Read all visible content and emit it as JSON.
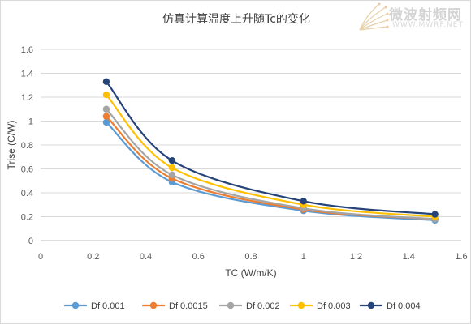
{
  "chart_data": {
    "type": "scatter",
    "title": "仿真计算温度上升随Tc的变化",
    "xlabel": "TC (W/m/K)",
    "ylabel": "Trise (C/W)",
    "xlim": [
      0,
      1.6
    ],
    "ylim": [
      0,
      1.6
    ],
    "xticks": [
      "0",
      "0.2",
      "0.4",
      "0.6",
      "0.8",
      "1",
      "1.2",
      "1.4",
      "1.6"
    ],
    "yticks": [
      "0",
      "0.2",
      "0.4",
      "0.6",
      "0.8",
      "1",
      "1.2",
      "1.4",
      "1.6"
    ],
    "grid": "horizontal",
    "legend_position": "bottom",
    "x": [
      0.25,
      0.5,
      1.0,
      1.5
    ],
    "series": [
      {
        "name": "Df 0.001",
        "color": "#5b9bd5",
        "values": [
          0.99,
          0.49,
          0.25,
          0.17
        ]
      },
      {
        "name": "Df 0.0015",
        "color": "#ed7d31",
        "values": [
          1.04,
          0.52,
          0.26,
          0.18
        ]
      },
      {
        "name": "Df 0.002",
        "color": "#a5a5a5",
        "values": [
          1.1,
          0.55,
          0.27,
          0.18
        ]
      },
      {
        "name": "Df 0.003",
        "color": "#ffc000",
        "values": [
          1.22,
          0.61,
          0.3,
          0.2
        ]
      },
      {
        "name": "Df 0.004",
        "color": "#264478",
        "values": [
          1.33,
          0.67,
          0.33,
          0.22
        ]
      }
    ]
  },
  "watermark": {
    "text_cn": "微波射频网",
    "text_url": "WWW.MWRF.NET"
  }
}
